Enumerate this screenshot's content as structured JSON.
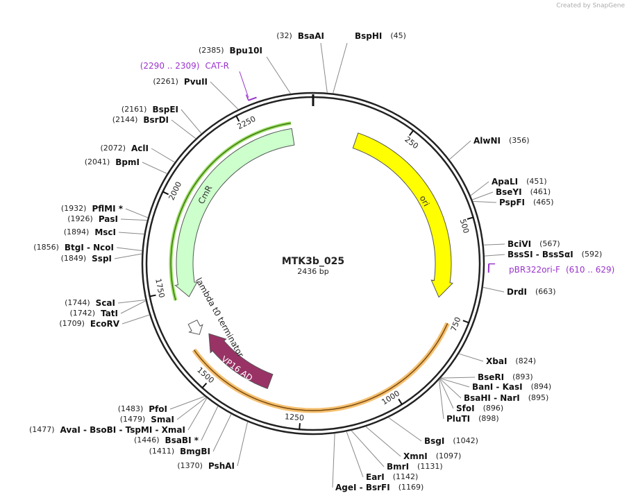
{
  "header": {
    "credit": "Created by SnapGene"
  },
  "map": {
    "name": "MTK3b_025",
    "length": "2436 bp",
    "ticks": [
      250,
      500,
      750,
      1000,
      1250,
      1500,
      1750,
      2000,
      2250
    ],
    "features": [
      {
        "name": "ori",
        "color": "#ffff00"
      },
      {
        "name": "CmR",
        "color": "#ccffcc"
      },
      {
        "name": "VP16 AD",
        "color": "#993366"
      },
      {
        "name": "lambda t0 terminator",
        "color": "#ffffff"
      }
    ],
    "primers": [
      {
        "name": "CAT-R",
        "range": "(2290 .. 2309)"
      },
      {
        "name": "pBR322ori-F",
        "range": "(610 .. 629)"
      }
    ],
    "sites": [
      {
        "position": "(32)",
        "enzymes": "BsaAI"
      },
      {
        "position": "(45)",
        "enzymes": "BspHI"
      },
      {
        "position": "(2385)",
        "enzymes": "Bpu10I"
      },
      {
        "position": "(2261)",
        "enzymes": "PvuII"
      },
      {
        "position": "(2161)",
        "enzymes": "BspEI"
      },
      {
        "position": "(2144)",
        "enzymes": "BsrDI"
      },
      {
        "position": "(2072)",
        "enzymes": "AclI"
      },
      {
        "position": "(2041)",
        "enzymes": "BpmI"
      },
      {
        "position": "(1932)",
        "enzymes": "PflMI *"
      },
      {
        "position": "(1926)",
        "enzymes": "PasI"
      },
      {
        "position": "(1894)",
        "enzymes": "MscI"
      },
      {
        "position": "(1856)",
        "enzymes": "BtgI - NcoI"
      },
      {
        "position": "(1849)",
        "enzymes": "SspI"
      },
      {
        "position": "(1744)",
        "enzymes": "ScaI"
      },
      {
        "position": "(1742)",
        "enzymes": "TatI"
      },
      {
        "position": "(1709)",
        "enzymes": "EcoRV"
      },
      {
        "position": "(1483)",
        "enzymes": "PfoI"
      },
      {
        "position": "(1479)",
        "enzymes": "SmaI"
      },
      {
        "position": "(1477)",
        "enzymes": "AvaI - BsoBI - TspMI - XmaI"
      },
      {
        "position": "(1446)",
        "enzymes": "BsaBI *"
      },
      {
        "position": "(1411)",
        "enzymes": "BmgBI"
      },
      {
        "position": "(1370)",
        "enzymes": "PshAI"
      },
      {
        "position": "(356)",
        "enzymes": "AlwNI"
      },
      {
        "position": "(451)",
        "enzymes": "ApaLI"
      },
      {
        "position": "(461)",
        "enzymes": "BseYI"
      },
      {
        "position": "(465)",
        "enzymes": "PspFI"
      },
      {
        "position": "(567)",
        "enzymes": "BciVI"
      },
      {
        "position": "(592)",
        "enzymes": "BssSI - BssSαI"
      },
      {
        "position": "(663)",
        "enzymes": "DrdI"
      },
      {
        "position": "(824)",
        "enzymes": "XbaI"
      },
      {
        "position": "(893)",
        "enzymes": "BseRI"
      },
      {
        "position": "(894)",
        "enzymes": "BanI - KasI"
      },
      {
        "position": "(895)",
        "enzymes": "BsaHI - NarI"
      },
      {
        "position": "(896)",
        "enzymes": "SfoI"
      },
      {
        "position": "(898)",
        "enzymes": "PluTI"
      },
      {
        "position": "(1042)",
        "enzymes": "BsgI"
      },
      {
        "position": "(1097)",
        "enzymes": "XmnI"
      },
      {
        "position": "(1131)",
        "enzymes": "BmrI"
      },
      {
        "position": "(1142)",
        "enzymes": "EarI"
      },
      {
        "position": "(1169)",
        "enzymes": "AgeI - BsrFI"
      }
    ]
  }
}
